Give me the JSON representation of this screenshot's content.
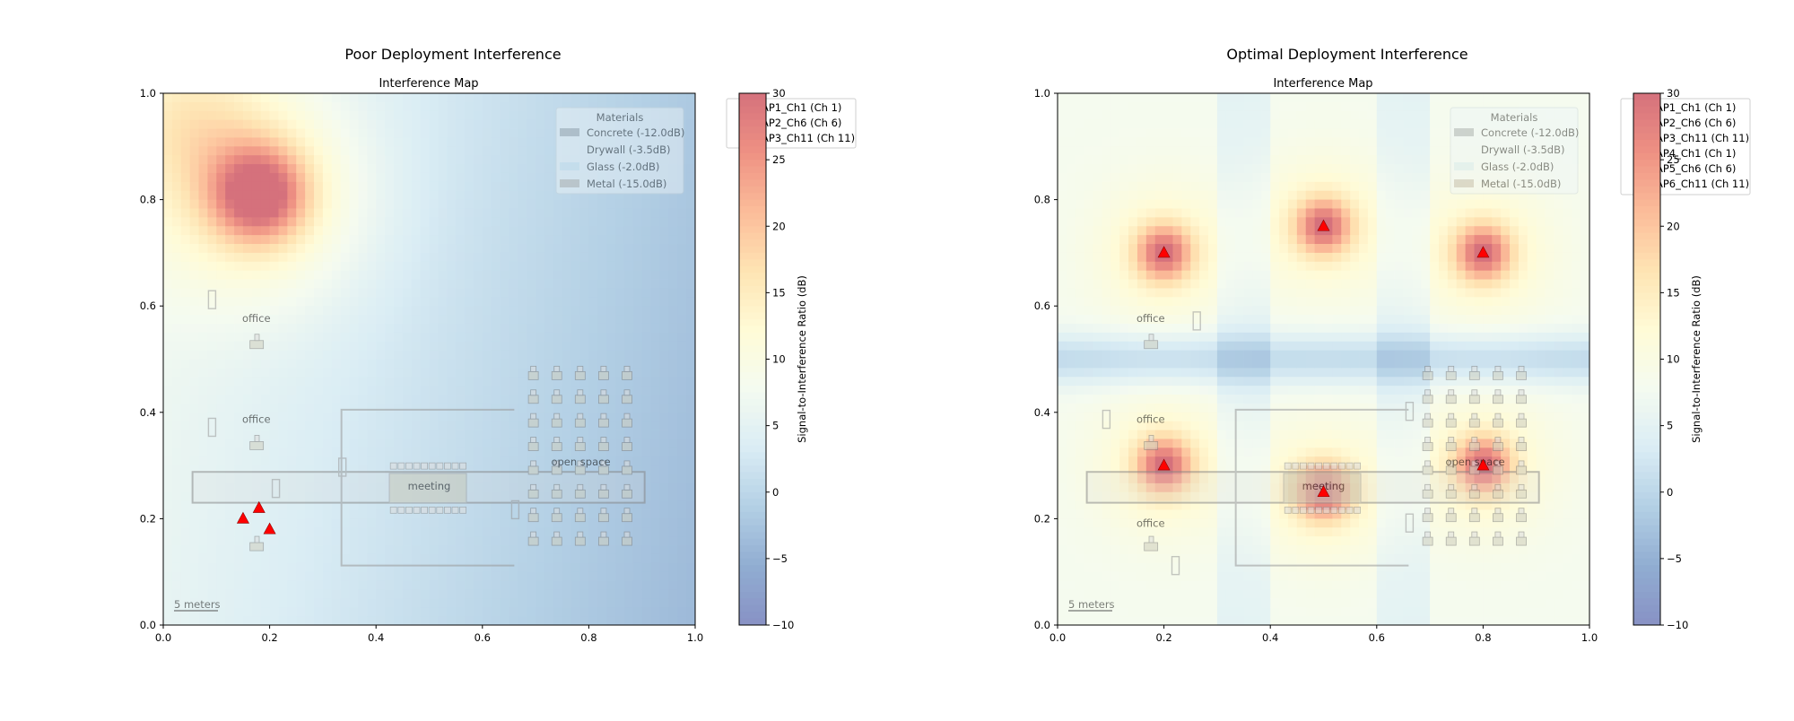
{
  "chart_data": [
    {
      "type": "heatmap",
      "suptitle": "Poor Deployment Interference",
      "title": "Interference Map",
      "xlim": [
        0,
        1
      ],
      "ylim": [
        0,
        1
      ],
      "x_ticks": [
        "0.0",
        "0.2",
        "0.4",
        "0.6",
        "0.8",
        "1.0"
      ],
      "y_ticks": [
        "0.0",
        "0.2",
        "0.4",
        "0.6",
        "0.8",
        "1.0"
      ],
      "colorbar": {
        "label": "Signal-to-Interference Ratio (dB)",
        "range": [
          -10,
          30
        ],
        "ticks": [
          "30",
          "25",
          "20",
          "15",
          "10",
          "5",
          "0",
          "−5",
          "−10"
        ]
      },
      "colormap": "RdYlBu_r",
      "access_points": [
        {
          "name": "AP1_Ch1 (Ch 1)",
          "x": 0.15,
          "y": 0.2
        },
        {
          "name": "AP2_Ch6 (Ch 6)",
          "x": 0.18,
          "y": 0.22
        },
        {
          "name": "AP3_Ch11 (Ch 11)",
          "x": 0.2,
          "y": 0.18
        }
      ],
      "sir_hotspots": [
        {
          "x": 0.18,
          "y": 0.81,
          "peak_db": 26
        }
      ],
      "materials_legend": {
        "title": "Materials",
        "items": [
          "Concrete (-12.0dB)",
          "Drywall (-3.5dB)",
          "Glass (-2.0dB)",
          "Metal (-15.0dB)"
        ]
      },
      "room_labels": [
        "office",
        "office",
        "meeting",
        "open space"
      ],
      "scale_bar": "5 meters",
      "grid": false
    },
    {
      "type": "heatmap",
      "suptitle": "Optimal Deployment Interference",
      "title": "Interference Map",
      "xlim": [
        0,
        1
      ],
      "ylim": [
        0,
        1
      ],
      "x_ticks": [
        "0.0",
        "0.2",
        "0.4",
        "0.6",
        "0.8",
        "1.0"
      ],
      "y_ticks": [
        "0.0",
        "0.2",
        "0.4",
        "0.6",
        "0.8",
        "1.0"
      ],
      "colorbar": {
        "label": "Signal-to-Interference Ratio (dB)",
        "range": [
          -10,
          30
        ],
        "ticks": [
          "30",
          "25",
          "20",
          "15",
          "10",
          "5",
          "0",
          "−5",
          "−10"
        ]
      },
      "colormap": "RdYlBu_r",
      "access_points": [
        {
          "name": "AP1_Ch1 (Ch 1)",
          "x": 0.2,
          "y": 0.7
        },
        {
          "name": "AP2_Ch6 (Ch 6)",
          "x": 0.5,
          "y": 0.75
        },
        {
          "name": "AP3_Ch11 (Ch 11)",
          "x": 0.8,
          "y": 0.7
        },
        {
          "name": "AP4_Ch1 (Ch 1)",
          "x": 0.2,
          "y": 0.3
        },
        {
          "name": "AP5_Ch6 (Ch 6)",
          "x": 0.5,
          "y": 0.25
        },
        {
          "name": "AP6_Ch11 (Ch 11)",
          "x": 0.8,
          "y": 0.3
        }
      ],
      "materials_legend": {
        "title": "Materials",
        "items": [
          "Concrete (-12.0dB)",
          "Drywall (-3.5dB)",
          "Glass (-2.0dB)",
          "Metal (-15.0dB)"
        ]
      },
      "room_labels": [
        "office",
        "office",
        "office",
        "meeting",
        "open space"
      ],
      "scale_bar": "5 meters",
      "grid": false
    }
  ],
  "colors": {
    "ap_marker": "#ff0000",
    "cmap_stops": [
      "#3f4ea0",
      "#4d7bb6",
      "#85b3d5",
      "#c4e2ee",
      "#eef8e7",
      "#fff8bd",
      "#fed384",
      "#f9935b",
      "#e44d37",
      "#bb1a2c"
    ]
  }
}
